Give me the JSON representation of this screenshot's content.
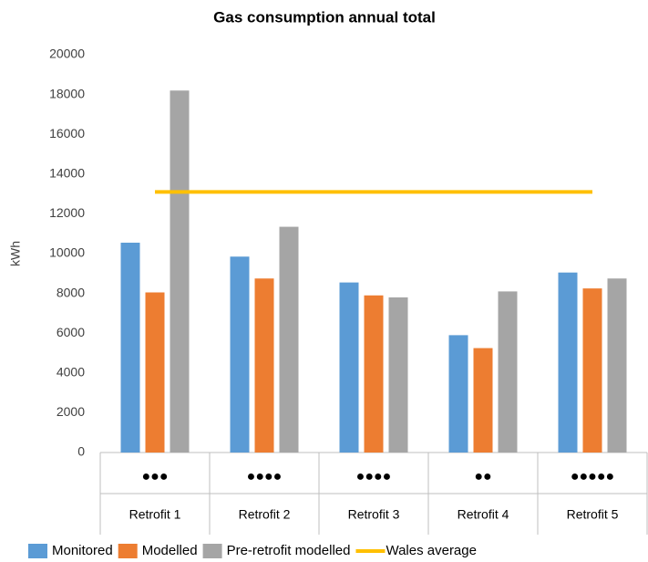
{
  "chart_data": {
    "type": "bar",
    "title": "Gas consumption annual total",
    "y_label": "kWh",
    "categories": [
      "Retrofit 1",
      "Retrofit 2",
      "Retrofit 3",
      "Retrofit 4",
      "Retrofit 5"
    ],
    "category_markers": [
      "●●●",
      "●●●●",
      "●●●●",
      "●●",
      "●●●●●"
    ],
    "series": [
      {
        "name": "Monitored",
        "color": "#5b9bd5",
        "values": [
          10550,
          9850,
          8550,
          5900,
          9050
        ]
      },
      {
        "name": "Modelled",
        "color": "#ed7d31",
        "values": [
          8050,
          8750,
          7900,
          5250,
          8250
        ]
      },
      {
        "name": "Pre-retrofit modelled",
        "color": "#a5a5a5",
        "values": [
          18200,
          11350,
          7800,
          8100,
          8750
        ]
      },
      {
        "name": "Wales average",
        "color": "#ffc000",
        "type": "line",
        "values": [
          13100,
          13100,
          13100,
          13100,
          13100
        ]
      }
    ],
    "ylim": [
      0,
      20000
    ],
    "yticks": [
      0,
      2000,
      4000,
      6000,
      8000,
      10000,
      12000,
      14000,
      16000,
      18000,
      20000
    ],
    "legend": "bottom"
  }
}
